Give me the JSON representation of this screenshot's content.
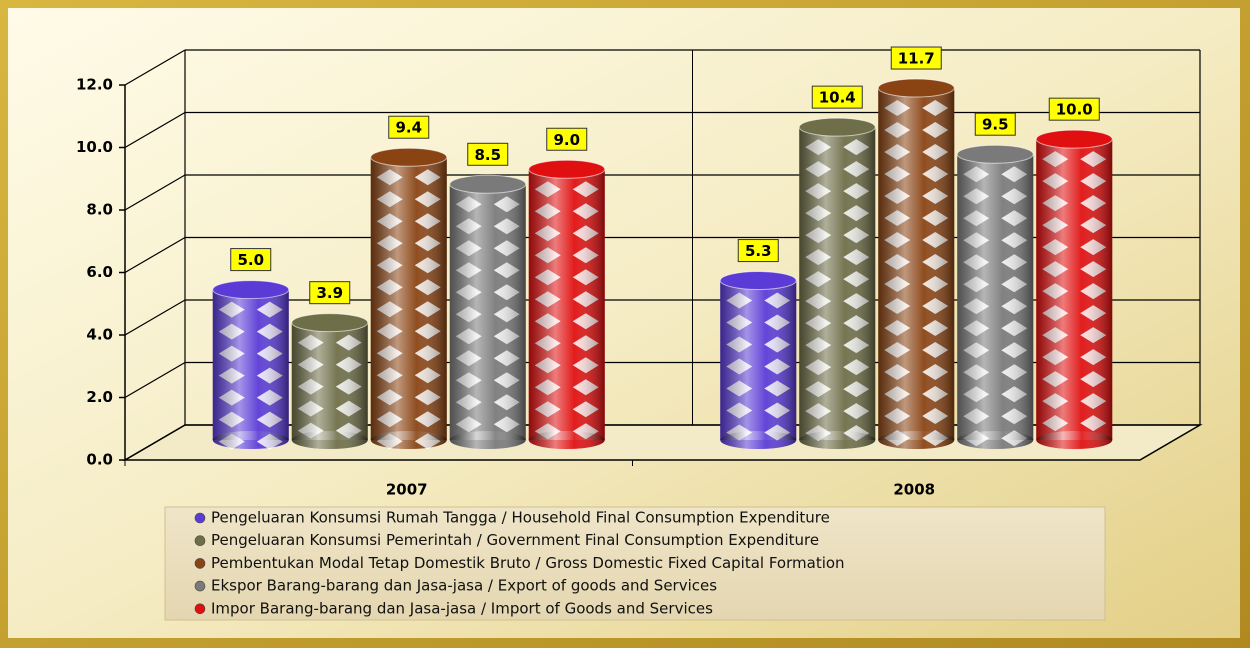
{
  "chart_data": {
    "type": "cylinder-bar",
    "categories": [
      "2007",
      "2008"
    ],
    "series": [
      {
        "name": "Pengeluaran Konsumsi Rumah Tangga / Household Final Consumption Expenditure",
        "color": "#5a3bd6",
        "values": [
          5.0,
          5.3
        ],
        "value_labels": [
          "5.0",
          "5.3"
        ]
      },
      {
        "name": "Pengeluaran Konsumsi Pemerintah / Government Final Consumption Expenditure",
        "color": "#6e6e48",
        "values": [
          3.9,
          10.4
        ],
        "value_labels": [
          "3.9",
          "10.4"
        ]
      },
      {
        "name": "Pembentukan Modal Tetap Domestik Bruto / Gross Domestic Fixed Capital Formation",
        "color": "#8a4414",
        "values": [
          9.4,
          11.7
        ],
        "value_labels": [
          "9.4",
          "11.7"
        ]
      },
      {
        "name": "Ekspor Barang-barang dan Jasa-jasa / Export of goods and Services",
        "color": "#7a7a7a",
        "values": [
          8.5,
          9.5
        ],
        "value_labels": [
          "8.5",
          "9.5"
        ]
      },
      {
        "name": "Impor Barang-barang dan Jasa-jasa / Import of Goods and Services",
        "color": "#e01010",
        "values": [
          9.0,
          10.0
        ],
        "value_labels": [
          "9.0",
          "10.0"
        ]
      }
    ],
    "ylim": [
      0,
      12
    ],
    "yticks": [
      {
        "value": 0,
        "label": "0.0"
      },
      {
        "value": 2,
        "label": "2.0"
      },
      {
        "value": 4,
        "label": "4.0"
      },
      {
        "value": 6,
        "label": "6.0"
      },
      {
        "value": 8,
        "label": "8.0"
      },
      {
        "value": 10,
        "label": "10.0"
      },
      {
        "value": 12,
        "label": "12.0"
      }
    ],
    "grid": true
  }
}
